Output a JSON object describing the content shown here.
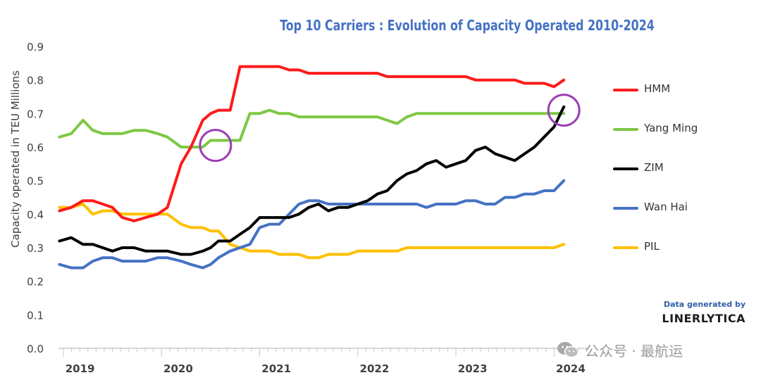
{
  "chart_data": {
    "type": "line",
    "title": "Top 10 Carriers : Evolution of Capacity Operated 2010-2024",
    "ylabel": "Capacity operated in TEU Millions",
    "xlabel": "",
    "ylim": [
      0.0,
      0.9
    ],
    "xlim": [
      2018.95,
      2024.35
    ],
    "yticks": [
      "0.0",
      "0.1",
      "0.2",
      "0.3",
      "0.4",
      "0.5",
      "0.6",
      "0.7",
      "0.8",
      "0.9"
    ],
    "xticks": [
      "2019",
      "2020",
      "2021",
      "2022",
      "2023",
      "2024"
    ],
    "x": [
      2018.96,
      2019.08,
      2019.2,
      2019.3,
      2019.4,
      2019.5,
      2019.6,
      2019.72,
      2019.84,
      2019.96,
      2020.06,
      2020.2,
      2020.3,
      2020.42,
      2020.5,
      2020.58,
      2020.7,
      2020.8,
      2020.9,
      2021.0,
      2021.1,
      2021.2,
      2021.3,
      2021.4,
      2021.5,
      2021.6,
      2021.7,
      2021.8,
      2021.9,
      2022.0,
      2022.1,
      2022.2,
      2022.3,
      2022.4,
      2022.5,
      2022.6,
      2022.7,
      2022.8,
      2022.9,
      2023.0,
      2023.1,
      2023.2,
      2023.3,
      2023.4,
      2023.5,
      2023.6,
      2023.7,
      2023.8,
      2023.9,
      2024.0,
      2024.1
    ],
    "series": [
      {
        "name": "HMM",
        "color": "#ff1a1a",
        "values": [
          0.41,
          0.42,
          0.44,
          0.44,
          0.43,
          0.42,
          0.39,
          0.38,
          0.39,
          0.4,
          0.42,
          0.55,
          0.6,
          0.68,
          0.7,
          0.71,
          0.71,
          0.84,
          0.84,
          0.84,
          0.84,
          0.84,
          0.83,
          0.83,
          0.82,
          0.82,
          0.82,
          0.82,
          0.82,
          0.82,
          0.82,
          0.82,
          0.81,
          0.81,
          0.81,
          0.81,
          0.81,
          0.81,
          0.81,
          0.81,
          0.81,
          0.8,
          0.8,
          0.8,
          0.8,
          0.8,
          0.79,
          0.79,
          0.79,
          0.78,
          0.8
        ]
      },
      {
        "name": "Yang Ming",
        "color": "#7ec843",
        "values": [
          0.63,
          0.64,
          0.68,
          0.65,
          0.64,
          0.64,
          0.64,
          0.65,
          0.65,
          0.64,
          0.63,
          0.6,
          0.6,
          0.6,
          0.62,
          0.62,
          0.62,
          0.62,
          0.7,
          0.7,
          0.71,
          0.7,
          0.7,
          0.69,
          0.69,
          0.69,
          0.69,
          0.69,
          0.69,
          0.69,
          0.69,
          0.69,
          0.68,
          0.67,
          0.69,
          0.7,
          0.7,
          0.7,
          0.7,
          0.7,
          0.7,
          0.7,
          0.7,
          0.7,
          0.7,
          0.7,
          0.7,
          0.7,
          0.7,
          0.7,
          0.7
        ]
      },
      {
        "name": "ZIM",
        "color": "#000000",
        "values": [
          0.32,
          0.33,
          0.31,
          0.31,
          0.3,
          0.29,
          0.3,
          0.3,
          0.29,
          0.29,
          0.29,
          0.28,
          0.28,
          0.29,
          0.3,
          0.32,
          0.32,
          0.34,
          0.36,
          0.39,
          0.39,
          0.39,
          0.39,
          0.4,
          0.42,
          0.43,
          0.41,
          0.42,
          0.42,
          0.43,
          0.44,
          0.46,
          0.47,
          0.5,
          0.52,
          0.53,
          0.55,
          0.56,
          0.54,
          0.55,
          0.56,
          0.59,
          0.6,
          0.58,
          0.57,
          0.56,
          0.58,
          0.6,
          0.63,
          0.66,
          0.72
        ]
      },
      {
        "name": "Wan Hai",
        "color": "#4472c4",
        "values": [
          0.25,
          0.24,
          0.24,
          0.26,
          0.27,
          0.27,
          0.26,
          0.26,
          0.26,
          0.27,
          0.27,
          0.26,
          0.25,
          0.24,
          0.25,
          0.27,
          0.29,
          0.3,
          0.31,
          0.36,
          0.37,
          0.37,
          0.4,
          0.43,
          0.44,
          0.44,
          0.43,
          0.43,
          0.43,
          0.43,
          0.43,
          0.43,
          0.43,
          0.43,
          0.43,
          0.43,
          0.42,
          0.43,
          0.43,
          0.43,
          0.44,
          0.44,
          0.43,
          0.43,
          0.45,
          0.45,
          0.46,
          0.46,
          0.47,
          0.47,
          0.5
        ]
      },
      {
        "name": "PIL",
        "color": "#ffc000",
        "values": [
          0.42,
          0.42,
          0.43,
          0.4,
          0.41,
          0.41,
          0.4,
          0.4,
          0.4,
          0.4,
          0.4,
          0.37,
          0.36,
          0.36,
          0.35,
          0.35,
          0.31,
          0.3,
          0.29,
          0.29,
          0.29,
          0.28,
          0.28,
          0.28,
          0.27,
          0.27,
          0.28,
          0.28,
          0.28,
          0.29,
          0.29,
          0.29,
          0.29,
          0.29,
          0.3,
          0.3,
          0.3,
          0.3,
          0.3,
          0.3,
          0.3,
          0.3,
          0.3,
          0.3,
          0.3,
          0.3,
          0.3,
          0.3,
          0.3,
          0.3,
          0.31
        ]
      }
    ],
    "annotations": [
      {
        "type": "circle",
        "color": "#9b3fb5",
        "x": 2020.55,
        "y": 0.605
      },
      {
        "type": "circle",
        "color": "#9b3fb5",
        "x": 2024.1,
        "y": 0.71
      }
    ],
    "legend_position": "right",
    "grid": false
  },
  "brand": {
    "line1": "Data generated by",
    "line2": "LINERLYTICA"
  },
  "watermark": {
    "text": "公众号 · 最航运",
    "icon": "wechat-icon"
  }
}
